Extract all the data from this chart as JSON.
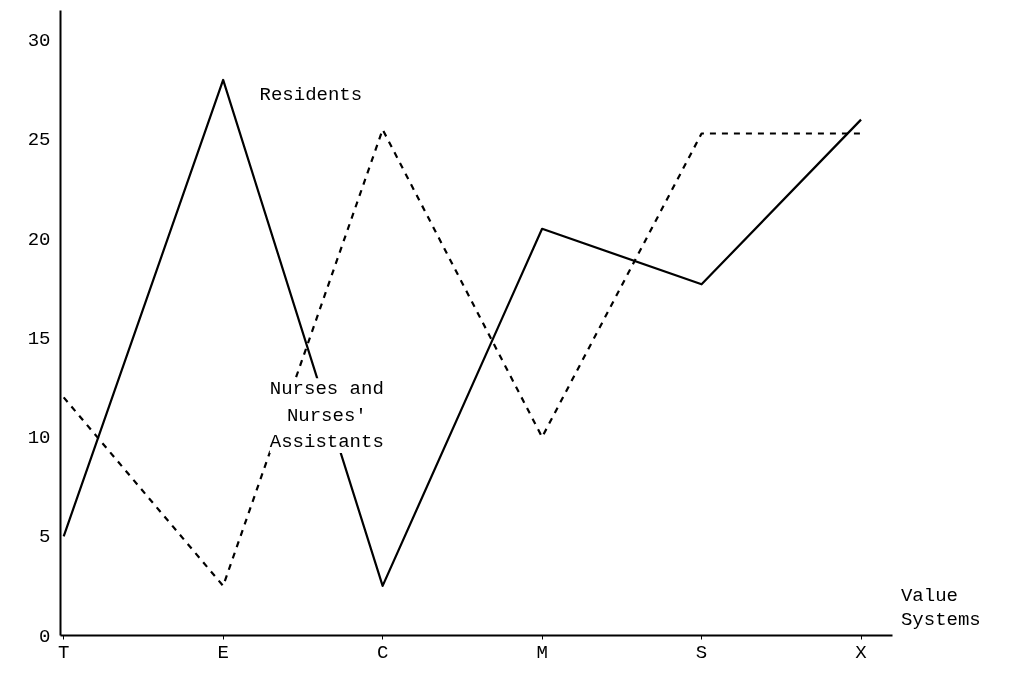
{
  "chart_data": {
    "type": "line",
    "xlabel": "Value Systems",
    "categories": [
      "T",
      "E",
      "C",
      "M",
      "S",
      "X"
    ],
    "series": [
      {
        "name": "Residents",
        "color": "#000000",
        "line_style": "solid",
        "values": [
          5,
          28,
          2.5,
          20.5,
          17.7,
          26
        ]
      },
      {
        "name": "Nurses and Nurses' Assistants",
        "color": "#000000",
        "line_style": "dashed",
        "values": [
          12,
          2.5,
          25.5,
          10,
          25.3,
          25.3
        ]
      }
    ],
    "ylim": [
      0,
      31.5
    ],
    "yticks": [
      0,
      5,
      10,
      15,
      20,
      25,
      30
    ],
    "grid": false,
    "marker": "none"
  }
}
